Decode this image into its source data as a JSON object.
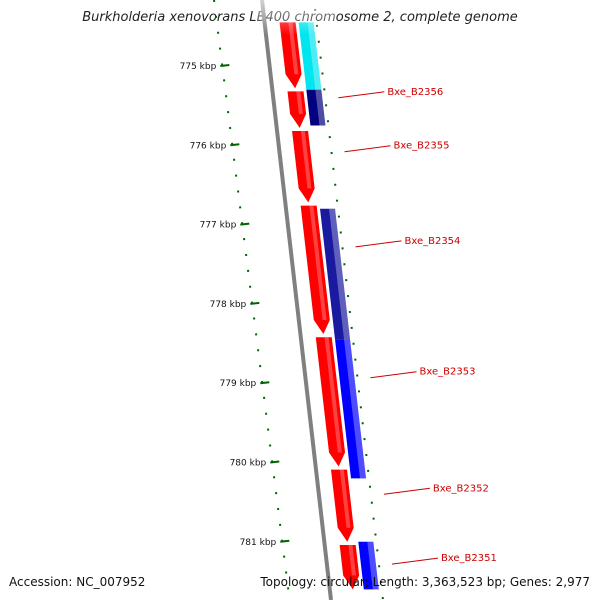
{
  "title": "Burkholderia xenovorans LB400 chromosome 2, complete genome",
  "footer": {
    "accession": "Accession: NC_007952",
    "summary": "Topology: circular; Length: 3,363,523 bp; Genes: 2,977"
  },
  "ticks": [
    {
      "kbp": 775,
      "label": "775 kbp"
    },
    {
      "kbp": 776,
      "label": "776 kbp"
    },
    {
      "kbp": 777,
      "label": "777 kbp"
    },
    {
      "kbp": 778,
      "label": "778 kbp"
    },
    {
      "kbp": 779,
      "label": "779 kbp"
    },
    {
      "kbp": 780,
      "label": "780 kbp"
    },
    {
      "kbp": 781,
      "label": "781 kbp"
    }
  ],
  "gene_labels": [
    {
      "name": "Bxe_B2356",
      "kbp": 775.3
    },
    {
      "name": "Bxe_B2355",
      "kbp": 775.98
    },
    {
      "name": "Bxe_B2354",
      "kbp": 777.18
    },
    {
      "name": "Bxe_B2353",
      "kbp": 778.83
    },
    {
      "name": "Bxe_B2352",
      "kbp": 780.3
    },
    {
      "name": "Bxe_B2351",
      "kbp": 781.18
    }
  ],
  "tracks": {
    "outer": [
      {
        "start": 774.45,
        "end": 775.3,
        "color": "#00e5ee",
        "label_ref": ""
      },
      {
        "start": 775.3,
        "end": 775.75,
        "color": "#000080",
        "label_ref": "Bxe_B2356"
      },
      {
        "start": 776.8,
        "end": 778.45,
        "color": "#1a1aa0",
        "label_ref": "Bxe_B2354"
      },
      {
        "start": 778.45,
        "end": 780.2,
        "color": "#0000ff",
        "label_ref": "Bxe_B2353"
      },
      {
        "start": 781.0,
        "end": 781.6,
        "color": "#0000ff",
        "label_ref": "Bxe_B2351"
      }
    ],
    "inner": [
      {
        "start": 774.45,
        "end": 775.28,
        "color": "#ff0000"
      },
      {
        "start": 775.32,
        "end": 775.78,
        "color": "#ff0000"
      },
      {
        "start": 775.82,
        "end": 776.72,
        "color": "#ff0000"
      },
      {
        "start": 776.76,
        "end": 778.38,
        "color": "#ff0000"
      },
      {
        "start": 778.42,
        "end": 780.05,
        "color": "#ff0000"
      },
      {
        "start": 780.09,
        "end": 781.0,
        "color": "#ff0000"
      },
      {
        "start": 781.04,
        "end": 781.6,
        "color": "#ff0000"
      }
    ]
  },
  "colors": {
    "backbone": "#808080",
    "tick": "#006400",
    "label": "#cc0000"
  }
}
